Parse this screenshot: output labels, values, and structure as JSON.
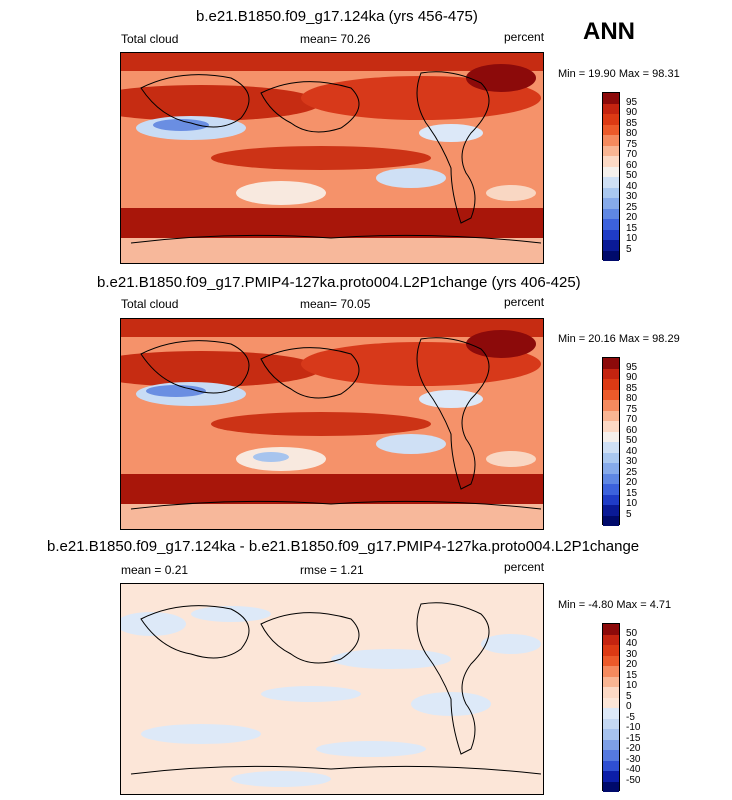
{
  "annual_label": "ANN",
  "chart_data": [
    {
      "type": "heatmap",
      "title": "b.e21.B1850.f09_g17.124ka (yrs 456-475)",
      "variable": "Total cloud",
      "mean_text": "mean=  70.26",
      "units": "percent",
      "minmax_text": "Min =  19.90 Max =  98.31",
      "levels": [
        "95",
        "90",
        "85",
        "80",
        "75",
        "70",
        "60",
        "50",
        "40",
        "30",
        "25",
        "20",
        "15",
        "10",
        "5"
      ],
      "colors": [
        "#8c0a0a",
        "#c42410",
        "#dc3a14",
        "#ec5a2a",
        "#f58a5e",
        "#f9b593",
        "#fcd9c5",
        "#f5f0ec",
        "#cfe0f5",
        "#aac8f0",
        "#86aaea",
        "#5f87e3",
        "#3c62dc",
        "#1f3cc6",
        "#0a1a96",
        "#000a6b"
      ]
    },
    {
      "type": "heatmap",
      "title": "b.e21.B1850.f09_g17.PMIP4-127ka.proto004.L2P1change (yrs 406-425)",
      "variable": "Total cloud",
      "mean_text": "mean=  70.05",
      "units": "percent",
      "minmax_text": "Min =  20.16 Max =  98.29",
      "levels": [
        "95",
        "90",
        "85",
        "80",
        "75",
        "70",
        "60",
        "50",
        "40",
        "30",
        "25",
        "20",
        "15",
        "10",
        "5"
      ],
      "colors": [
        "#8c0a0a",
        "#c42410",
        "#dc3a14",
        "#ec5a2a",
        "#f58a5e",
        "#f9b593",
        "#fcd9c5",
        "#f5f0ec",
        "#cfe0f5",
        "#aac8f0",
        "#86aaea",
        "#5f87e3",
        "#3c62dc",
        "#1f3cc6",
        "#0a1a96",
        "#000a6b"
      ]
    },
    {
      "type": "heatmap",
      "title": "b.e21.B1850.f09_g17.124ka - b.e21.B1850.f09_g17.PMIP4-127ka.proto004.L2P1change",
      "mean_text": "mean =   0.21",
      "rmse_text": "rmse =   1.21",
      "units": "percent",
      "minmax_text": "Min =  -4.80 Max =   4.71",
      "levels": [
        "50",
        "40",
        "30",
        "20",
        "15",
        "10",
        "5",
        "0",
        "-5",
        "-10",
        "-15",
        "-20",
        "-30",
        "-40",
        "-50"
      ],
      "colors": [
        "#8c0a0a",
        "#c42410",
        "#dc3a14",
        "#ec5a2a",
        "#f58a5e",
        "#f9b593",
        "#fcd9c5",
        "#fce6d8",
        "#dde9f8",
        "#c4d8f3",
        "#a6c2ee",
        "#7d9fe6",
        "#5579df",
        "#2f4fd2",
        "#0c1ea8",
        "#000a6b"
      ]
    }
  ]
}
